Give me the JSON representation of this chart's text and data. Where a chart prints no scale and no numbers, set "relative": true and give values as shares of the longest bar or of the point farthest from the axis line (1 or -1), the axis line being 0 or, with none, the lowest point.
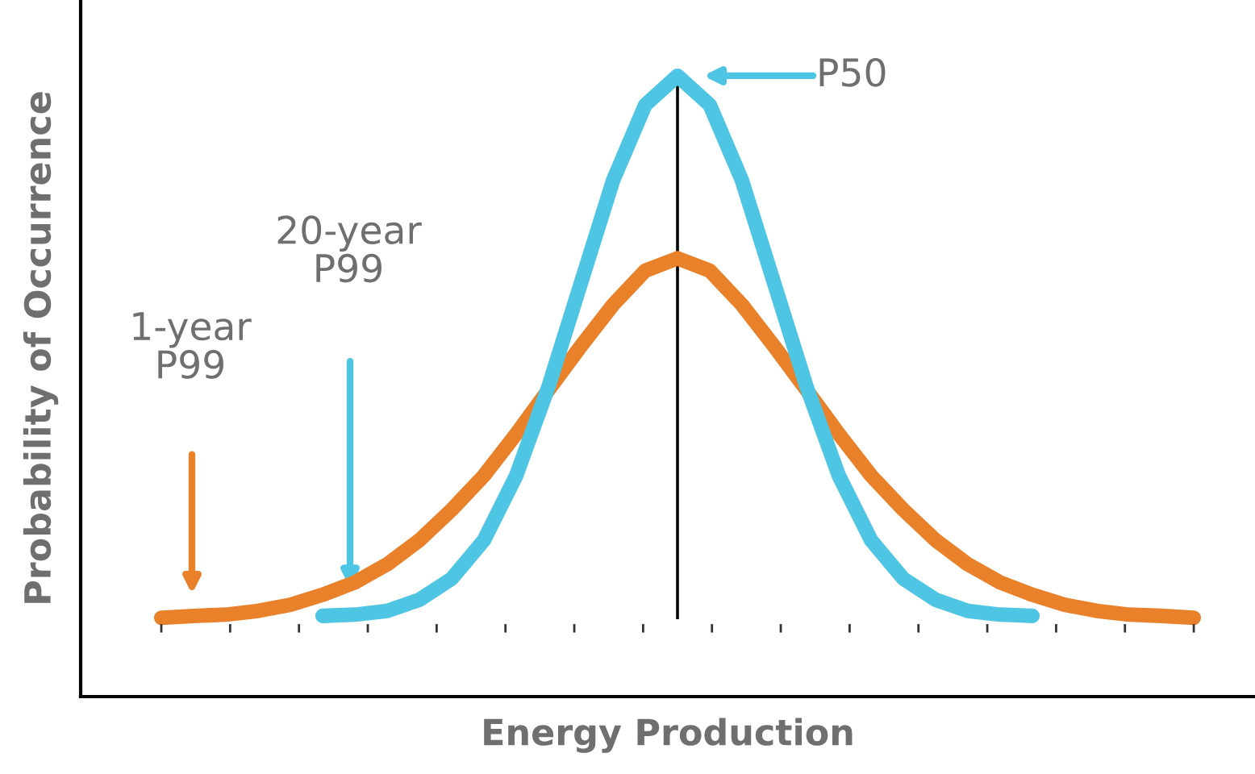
{
  "chart_data": {
    "type": "line",
    "relative": true,
    "xlabel": "Energy Production",
    "ylabel": "Probability of Occurrence",
    "categories": [
      null,
      null,
      null,
      null,
      null,
      null,
      null,
      null,
      null,
      null,
      null,
      null,
      null,
      null,
      null,
      null,
      null,
      null,
      null,
      null,
      null,
      null,
      null,
      null,
      null,
      null,
      null,
      null,
      null,
      null,
      null,
      null,
      null
    ],
    "series": [
      {
        "color": "#e8812a",
        "values": [
          0.127,
          0.13,
          0.132,
          0.138,
          0.148,
          0.164,
          0.184,
          0.213,
          0.252,
          0.301,
          0.356,
          0.423,
          0.494,
          0.564,
          0.631,
          0.686,
          0.706,
          0.686,
          0.631,
          0.564,
          0.494,
          0.423,
          0.356,
          0.301,
          0.252,
          0.213,
          0.184,
          0.164,
          0.148,
          0.138,
          0.132,
          0.13,
          0.127
        ]
      },
      {
        "color": "#4ec5e2",
        "values": [
          null,
          null,
          null,
          null,
          null,
          0.13,
          0.132,
          0.138,
          0.156,
          0.19,
          0.252,
          0.356,
          0.499,
          0.665,
          0.831,
          0.953,
          1,
          0.953,
          0.831,
          0.665,
          0.499,
          0.356,
          0.252,
          0.19,
          0.156,
          0.138,
          0.132,
          0.13,
          null,
          null,
          null,
          null,
          null
        ]
      }
    ],
    "annotations": [
      "P50",
      "20-year\nP99",
      "1-year\nP99"
    ],
    "grid": false,
    "legend": false,
    "marker": "none",
    "line_style": "solid"
  }
}
